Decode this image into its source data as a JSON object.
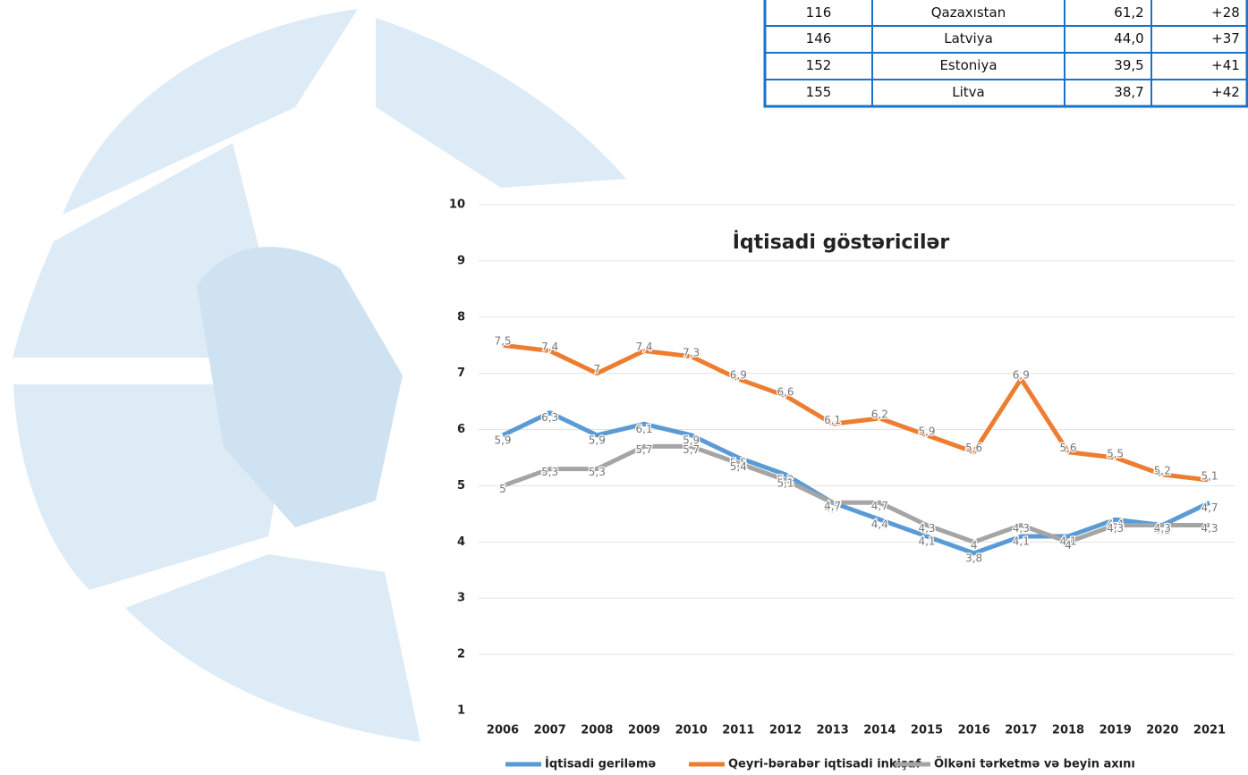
{
  "table": {
    "rows": [
      [
        "116",
        "Qazaxıstan",
        "61,2",
        "+28"
      ],
      [
        "146",
        "Latviya",
        "44,0",
        "+37"
      ],
      [
        "152",
        "Estoniya",
        "39,5",
        "+41"
      ],
      [
        "155",
        "Litva",
        "38,7",
        "+42"
      ]
    ]
  },
  "chart_data": {
    "type": "line",
    "title": "İqtisadi göstəricilər",
    "categories": [
      "2006",
      "2007",
      "2008",
      "2009",
      "2010",
      "2011",
      "2012",
      "2013",
      "2014",
      "2015",
      "2016",
      "2017",
      "2018",
      "2019",
      "2020",
      "2021"
    ],
    "ylim": [
      1,
      10
    ],
    "yticks": [
      1,
      2,
      3,
      4,
      5,
      6,
      7,
      8,
      9,
      10
    ],
    "grid": true,
    "series": [
      {
        "name": "İqtisadi geriləmə",
        "color": "#5b9bd5",
        "values": [
          5.9,
          6.3,
          5.9,
          6.1,
          5.9,
          5.5,
          5.2,
          4.7,
          4.4,
          4.1,
          3.8,
          4.1,
          4.1,
          4.4,
          4.3,
          4.7
        ],
        "value_labels": [
          "5,9",
          "6,3",
          "5,9",
          "6,1",
          "5,9",
          "5,5",
          "5,2",
          "4,7",
          "4,4",
          "4,1",
          "3,8",
          "4,1",
          "4,1",
          "4,4",
          "4,3",
          "4,7"
        ]
      },
      {
        "name": "Qeyri-bərabər iqtisadi inkişaf",
        "color": "#ed7d31",
        "values": [
          7.5,
          7.4,
          7,
          7.4,
          7.3,
          6.9,
          6.6,
          6.1,
          6.2,
          5.9,
          5.6,
          6.9,
          5.6,
          5.5,
          5.2,
          5.1
        ],
        "value_labels": [
          "7,5",
          "7,4",
          "7",
          "7,4",
          "7,3",
          "6,9",
          "6,6",
          "6,1",
          "6,2",
          "5,9",
          "5,6",
          "6,9",
          "5,6",
          "5,5",
          "5,2",
          "5,1"
        ]
      },
      {
        "name": "Ölkəni tərketmə və beyin axını",
        "color": "#a5a5a5",
        "values": [
          5,
          5.3,
          5.3,
          5.7,
          5.7,
          5.4,
          5.1,
          4.7,
          4.7,
          4.3,
          4,
          4.3,
          4,
          4.3,
          4.3,
          4.3
        ],
        "value_labels": [
          "5",
          "5,3",
          "5,3",
          "5,7",
          "5,7",
          "5,4",
          "5,1",
          "4,7",
          "4,7",
          "4,3",
          "4",
          "4,3",
          "4",
          "4,3",
          "4,3",
          "4,3"
        ]
      }
    ]
  }
}
